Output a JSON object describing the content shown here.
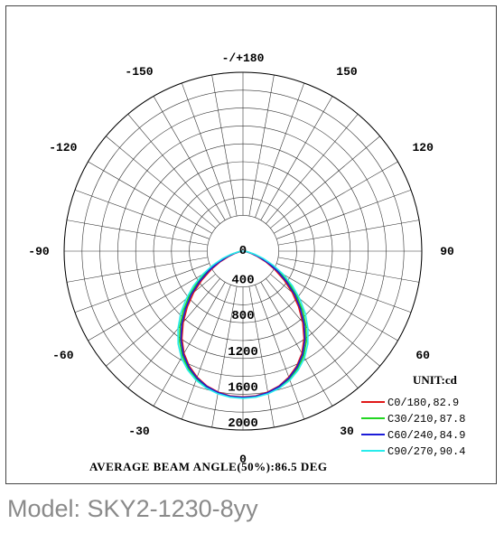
{
  "chart_data": {
    "type": "polar",
    "angle_ticks": [
      {
        "label": "-/+180",
        "angle": 180
      },
      {
        "label": "150",
        "angle": 150
      },
      {
        "label": "-150",
        "angle": -150
      },
      {
        "label": "120",
        "angle": 120
      },
      {
        "label": "-120",
        "angle": -120
      },
      {
        "label": "90",
        "angle": 90
      },
      {
        "label": "-90",
        "angle": -90
      },
      {
        "label": "60",
        "angle": 60
      },
      {
        "label": "-60",
        "angle": -60
      },
      {
        "label": "30",
        "angle": 30
      },
      {
        "label": "-30",
        "angle": -30
      },
      {
        "label": "0",
        "angle": 0
      }
    ],
    "radial_ticks": [
      0,
      400,
      800,
      1200,
      1600,
      2000
    ],
    "radial_max": 2000,
    "unit_label": "UNIT:cd",
    "beam_label": "AVERAGE BEAM ANGLE(50%):86.5 DEG",
    "angles_deg": [
      0,
      5,
      10,
      15,
      20,
      25,
      30,
      35,
      40,
      45,
      50,
      55,
      60,
      65,
      70,
      75,
      80,
      85,
      90
    ],
    "series": [
      {
        "name": "C0/180,82.9",
        "color": "#e01818",
        "values": [
          1630,
          1625,
          1600,
          1560,
          1500,
          1420,
          1320,
          1190,
          1040,
          880,
          720,
          560,
          410,
          280,
          170,
          90,
          40,
          15,
          5
        ]
      },
      {
        "name": "C30/210,87.8",
        "color": "#22d622",
        "values": [
          1640,
          1635,
          1612,
          1575,
          1520,
          1448,
          1355,
          1235,
          1095,
          945,
          790,
          635,
          480,
          340,
          215,
          120,
          55,
          20,
          5
        ]
      },
      {
        "name": "C60/240,84.9",
        "color": "#1c1cd8",
        "values": [
          1635,
          1630,
          1606,
          1566,
          1508,
          1432,
          1336,
          1210,
          1065,
          910,
          755,
          595,
          445,
          310,
          195,
          105,
          48,
          18,
          5
        ]
      },
      {
        "name": "C90/270,90.4",
        "color": "#28ecec",
        "values": [
          1645,
          1640,
          1620,
          1585,
          1535,
          1465,
          1378,
          1265,
          1130,
          985,
          830,
          675,
          520,
          375,
          245,
          140,
          65,
          25,
          6
        ]
      }
    ]
  },
  "caption": {
    "model": "Model: SKY2-1230-8yy"
  }
}
